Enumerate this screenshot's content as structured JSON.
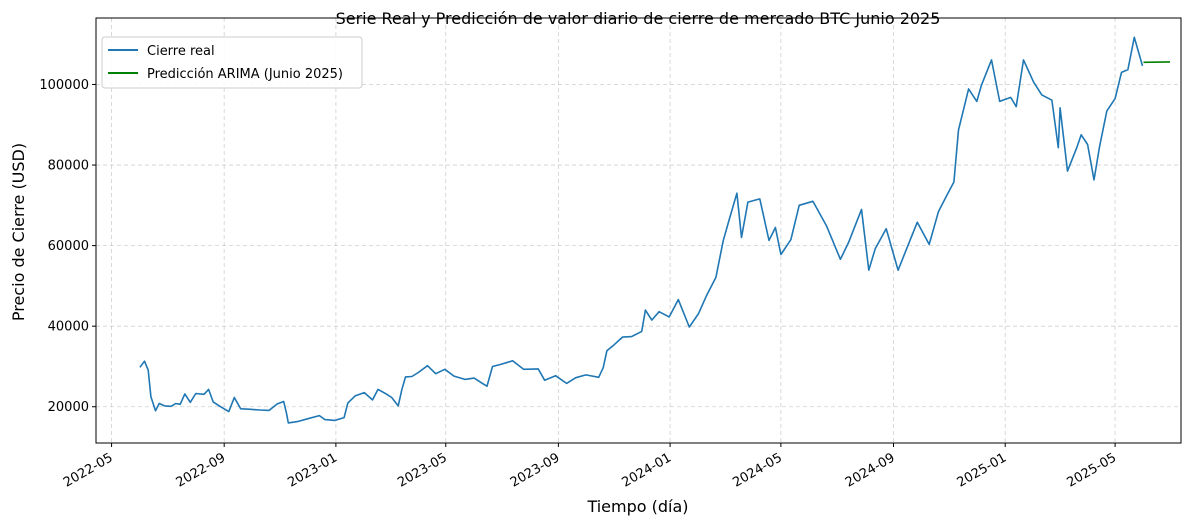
{
  "chart_data": {
    "type": "line",
    "title": "Serie Real y Predicción de valor diario de cierre de mercado BTC Junio 2025",
    "xlabel": "Tiempo (día)",
    "ylabel": "Precio de Cierre (USD)",
    "x_range": [
      "2022-04-14",
      "2025-07-12"
    ],
    "ylim": [
      11000,
      116500
    ],
    "x_ticks": [
      {
        "date": "2022-05-01",
        "label": "2022-05"
      },
      {
        "date": "2022-09-01",
        "label": "2022-09"
      },
      {
        "date": "2023-01-01",
        "label": "2023-01"
      },
      {
        "date": "2023-05-01",
        "label": "2023-05"
      },
      {
        "date": "2023-09-01",
        "label": "2023-09"
      },
      {
        "date": "2024-01-01",
        "label": "2024-01"
      },
      {
        "date": "2024-05-01",
        "label": "2024-05"
      },
      {
        "date": "2024-09-01",
        "label": "2024-09"
      },
      {
        "date": "2025-01-01",
        "label": "2025-01"
      },
      {
        "date": "2025-05-01",
        "label": "2025-05"
      }
    ],
    "y_ticks": [
      20000,
      40000,
      60000,
      80000,
      100000
    ],
    "grid": true,
    "legend_position": "top-left",
    "series": [
      {
        "name": "Cierre real",
        "color": "#1f77b4",
        "points": [
          [
            "2022-06-01",
            29800
          ],
          [
            "2022-06-06",
            31300
          ],
          [
            "2022-06-10",
            29100
          ],
          [
            "2022-06-13",
            22500
          ],
          [
            "2022-06-18",
            19000
          ],
          [
            "2022-06-22",
            20800
          ],
          [
            "2022-06-28",
            20200
          ],
          [
            "2022-07-05",
            20100
          ],
          [
            "2022-07-10",
            20800
          ],
          [
            "2022-07-15",
            20600
          ],
          [
            "2022-07-20",
            23200
          ],
          [
            "2022-07-26",
            21100
          ],
          [
            "2022-08-01",
            23300
          ],
          [
            "2022-08-10",
            23100
          ],
          [
            "2022-08-15",
            24300
          ],
          [
            "2022-08-20",
            21200
          ],
          [
            "2022-08-28",
            20000
          ],
          [
            "2022-09-06",
            18800
          ],
          [
            "2022-09-12",
            22300
          ],
          [
            "2022-09-19",
            19500
          ],
          [
            "2022-09-28",
            19400
          ],
          [
            "2022-10-10",
            19200
          ],
          [
            "2022-10-20",
            19100
          ],
          [
            "2022-10-29",
            20700
          ],
          [
            "2022-11-05",
            21300
          ],
          [
            "2022-11-08",
            18500
          ],
          [
            "2022-11-10",
            16000
          ],
          [
            "2022-11-20",
            16300
          ],
          [
            "2022-12-01",
            17000
          ],
          [
            "2022-12-14",
            17800
          ],
          [
            "2022-12-20",
            16800
          ],
          [
            "2022-12-31",
            16600
          ],
          [
            "2023-01-10",
            17300
          ],
          [
            "2023-01-14",
            20900
          ],
          [
            "2023-01-22",
            22700
          ],
          [
            "2023-02-01",
            23500
          ],
          [
            "2023-02-10",
            21700
          ],
          [
            "2023-02-16",
            24300
          ],
          [
            "2023-02-25",
            23200
          ],
          [
            "2023-03-03",
            22300
          ],
          [
            "2023-03-10",
            20200
          ],
          [
            "2023-03-14",
            24200
          ],
          [
            "2023-03-18",
            27400
          ],
          [
            "2023-03-25",
            27500
          ],
          [
            "2023-04-01",
            28500
          ],
          [
            "2023-04-11",
            30200
          ],
          [
            "2023-04-20",
            28200
          ],
          [
            "2023-04-30",
            29300
          ],
          [
            "2023-05-10",
            27600
          ],
          [
            "2023-05-22",
            26800
          ],
          [
            "2023-06-01",
            27100
          ],
          [
            "2023-06-10",
            25800
          ],
          [
            "2023-06-15",
            25100
          ],
          [
            "2023-06-21",
            30000
          ],
          [
            "2023-06-30",
            30500
          ],
          [
            "2023-07-13",
            31400
          ],
          [
            "2023-07-25",
            29300
          ],
          [
            "2023-08-10",
            29400
          ],
          [
            "2023-08-17",
            26600
          ],
          [
            "2023-08-29",
            27700
          ],
          [
            "2023-09-10",
            25800
          ],
          [
            "2023-09-20",
            27200
          ],
          [
            "2023-10-01",
            27900
          ],
          [
            "2023-10-15",
            27300
          ],
          [
            "2023-10-20",
            29700
          ],
          [
            "2023-10-24",
            33900
          ],
          [
            "2023-11-01",
            35400
          ],
          [
            "2023-11-10",
            37300
          ],
          [
            "2023-11-20",
            37400
          ],
          [
            "2023-12-01",
            38700
          ],
          [
            "2023-12-05",
            44000
          ],
          [
            "2023-12-12",
            41500
          ],
          [
            "2023-12-20",
            43600
          ],
          [
            "2023-12-31",
            42300
          ],
          [
            "2024-01-10",
            46600
          ],
          [
            "2024-01-22",
            39800
          ],
          [
            "2024-02-01",
            43100
          ],
          [
            "2024-02-10",
            47700
          ],
          [
            "2024-02-20",
            52100
          ],
          [
            "2024-02-28",
            61200
          ],
          [
            "2024-03-05",
            66000
          ],
          [
            "2024-03-14",
            73000
          ],
          [
            "2024-03-19",
            62000
          ],
          [
            "2024-03-26",
            70800
          ],
          [
            "2024-04-08",
            71600
          ],
          [
            "2024-04-18",
            61300
          ],
          [
            "2024-04-25",
            64500
          ],
          [
            "2024-05-01",
            57800
          ],
          [
            "2024-05-12",
            61500
          ],
          [
            "2024-05-21",
            70000
          ],
          [
            "2024-06-05",
            71000
          ],
          [
            "2024-06-20",
            64800
          ],
          [
            "2024-07-05",
            56600
          ],
          [
            "2024-07-14",
            60800
          ],
          [
            "2024-07-28",
            69000
          ],
          [
            "2024-08-05",
            53900
          ],
          [
            "2024-08-12",
            59200
          ],
          [
            "2024-08-24",
            64200
          ],
          [
            "2024-09-06",
            53900
          ],
          [
            "2024-09-15",
            59000
          ],
          [
            "2024-09-27",
            65800
          ],
          [
            "2024-10-10",
            60300
          ],
          [
            "2024-10-20",
            68400
          ],
          [
            "2024-10-29",
            72400
          ],
          [
            "2024-11-06",
            75800
          ],
          [
            "2024-11-11",
            88700
          ],
          [
            "2024-11-22",
            98900
          ],
          [
            "2024-12-01",
            95800
          ],
          [
            "2024-12-06",
            99800
          ],
          [
            "2024-12-17",
            106100
          ],
          [
            "2024-12-26",
            95800
          ],
          [
            "2025-01-07",
            96800
          ],
          [
            "2025-01-13",
            94500
          ],
          [
            "2025-01-21",
            106100
          ],
          [
            "2025-02-01",
            100600
          ],
          [
            "2025-02-10",
            97400
          ],
          [
            "2025-02-21",
            96100
          ],
          [
            "2025-02-28",
            84300
          ],
          [
            "2025-03-02",
            94200
          ],
          [
            "2025-03-10",
            78500
          ],
          [
            "2025-03-20",
            84200
          ],
          [
            "2025-03-25",
            87500
          ],
          [
            "2025-04-01",
            85100
          ],
          [
            "2025-04-08",
            76300
          ],
          [
            "2025-04-14",
            84500
          ],
          [
            "2025-04-22",
            93400
          ],
          [
            "2025-05-01",
            96500
          ],
          [
            "2025-05-08",
            103000
          ],
          [
            "2025-05-15",
            103700
          ],
          [
            "2025-05-22",
            111700
          ],
          [
            "2025-05-31",
            104600
          ]
        ]
      },
      {
        "name": "Predicción ARIMA (Junio 2025)",
        "color": "#008000",
        "points": [
          [
            "2025-06-01",
            105500
          ],
          [
            "2025-06-30",
            105600
          ]
        ]
      }
    ]
  }
}
